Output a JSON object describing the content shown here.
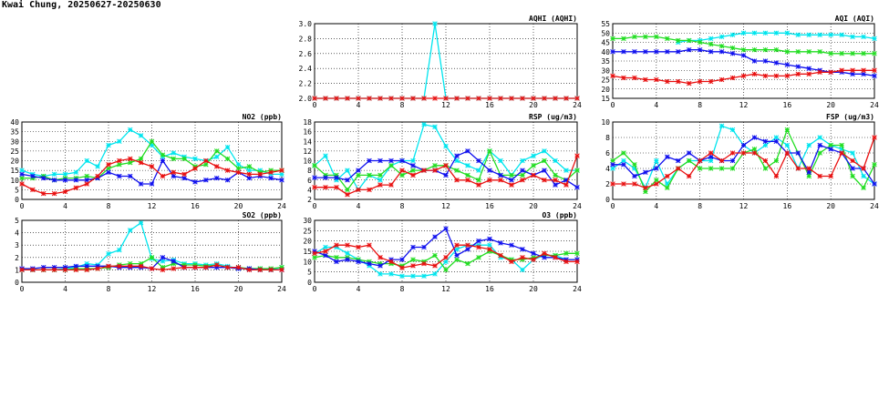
{
  "page": {
    "title": "Kwai Chung, 20250627-20250630"
  },
  "colors": {
    "cyan": "#00e5ee",
    "green": "#22dd22",
    "blue": "#1010ee",
    "red": "#e81010"
  },
  "chart_data": [
    {
      "type": "line",
      "title": "AQHI (AQHI)",
      "ylim": [
        2.0,
        3.0
      ],
      "yticks": [
        "2.0",
        "2.2",
        "2.4",
        "2.6",
        "2.8",
        "3.0"
      ],
      "xticks": [
        "0",
        "4",
        "8",
        "12",
        "16",
        "20",
        "24"
      ],
      "grid": true,
      "x": [
        0,
        1,
        2,
        3,
        4,
        5,
        6,
        7,
        8,
        9,
        10,
        11,
        12,
        13,
        14,
        15,
        16,
        17,
        18,
        19,
        20,
        21,
        22,
        23,
        24
      ],
      "series": [
        {
          "color": "cyan",
          "values": [
            2,
            2,
            2,
            2,
            2,
            2,
            2,
            2,
            2,
            2,
            2,
            3,
            2,
            2,
            2,
            2,
            2,
            2,
            2,
            2,
            2,
            2,
            2,
            2,
            2
          ]
        },
        {
          "color": "red",
          "values": [
            2,
            2,
            2,
            2,
            2,
            2,
            2,
            2,
            2,
            2,
            2,
            2,
            2,
            2,
            2,
            2,
            2,
            2,
            2,
            2,
            2,
            2,
            2,
            2,
            2
          ]
        }
      ]
    },
    {
      "type": "line",
      "title": "AQI (AQI)",
      "ylim": [
        15,
        55
      ],
      "yticks": [
        "15",
        "20",
        "25",
        "30",
        "35",
        "40",
        "45",
        "50",
        "55"
      ],
      "xticks": [
        "0",
        "4",
        "8",
        "12",
        "16",
        "20",
        "24"
      ],
      "grid": true,
      "x": [
        0,
        1,
        2,
        3,
        4,
        5,
        6,
        7,
        8,
        9,
        10,
        11,
        12,
        13,
        14,
        15,
        16,
        17,
        18,
        19,
        20,
        21,
        22,
        23,
        24
      ],
      "series": [
        {
          "color": "cyan",
          "values": [
            null,
            null,
            null,
            null,
            null,
            null,
            45,
            46,
            46,
            47,
            48,
            49,
            50,
            50,
            50,
            50,
            50,
            49,
            49,
            49,
            49,
            49,
            48,
            48,
            47
          ]
        },
        {
          "color": "green",
          "values": [
            47,
            47,
            48,
            48,
            48,
            47,
            46,
            46,
            45,
            44,
            43,
            42,
            41,
            41,
            41,
            41,
            40,
            40,
            40,
            40,
            39,
            39,
            39,
            39,
            39
          ]
        },
        {
          "color": "blue",
          "values": [
            40,
            40,
            40,
            40,
            40,
            40,
            40,
            41,
            41,
            40,
            40,
            39,
            38,
            35,
            35,
            34,
            33,
            32,
            31,
            30,
            29,
            29,
            28,
            28,
            27
          ]
        },
        {
          "color": "red",
          "values": [
            27,
            26,
            26,
            25,
            25,
            24,
            24,
            23,
            24,
            24,
            25,
            26,
            27,
            28,
            27,
            27,
            27,
            28,
            28,
            29,
            29,
            30,
            30,
            30,
            30
          ]
        }
      ]
    },
    {
      "type": "line",
      "title": "NO2 (ppb)",
      "ylim": [
        0,
        40
      ],
      "yticks": [
        "0",
        "5",
        "10",
        "15",
        "20",
        "25",
        "30",
        "35",
        "40"
      ],
      "xticks": [
        "0",
        "4",
        "8",
        "12",
        "16",
        "20",
        "24"
      ],
      "grid": true,
      "x": [
        0,
        1,
        2,
        3,
        4,
        5,
        6,
        7,
        8,
        9,
        10,
        11,
        12,
        13,
        14,
        15,
        16,
        17,
        18,
        19,
        20,
        21,
        22,
        23,
        24
      ],
      "series": [
        {
          "color": "cyan",
          "values": [
            15,
            13,
            12,
            13,
            13,
            14,
            20,
            17,
            28,
            30,
            36,
            33,
            28,
            22,
            24,
            22,
            21,
            20,
            22,
            27,
            18,
            15,
            15,
            13,
            13
          ]
        },
        {
          "color": "green",
          "values": [
            11,
            11,
            12,
            10,
            11,
            11,
            12,
            11,
            16,
            18,
            19,
            21,
            30,
            23,
            21,
            21,
            17,
            18,
            25,
            21,
            16,
            17,
            14,
            15,
            15
          ]
        },
        {
          "color": "blue",
          "values": [
            13,
            12,
            11,
            10,
            10,
            10,
            10,
            11,
            14,
            12,
            12,
            8,
            8,
            20,
            12,
            11,
            9,
            10,
            11,
            10,
            14,
            11,
            12,
            11,
            10
          ]
        },
        {
          "color": "red",
          "values": [
            8,
            5,
            3,
            3,
            4,
            6,
            8,
            12,
            18,
            20,
            21,
            19,
            17,
            12,
            14,
            13,
            16,
            20,
            17,
            15,
            14,
            13,
            13,
            14,
            15
          ]
        }
      ]
    },
    {
      "type": "line",
      "title": "RSP (ug/m3)",
      "ylim": [
        2,
        18
      ],
      "yticks": [
        "2",
        "4",
        "6",
        "8",
        "10",
        "12",
        "14",
        "16",
        "18"
      ],
      "xticks": [
        "0",
        "4",
        "8",
        "12",
        "16",
        "20",
        "24"
      ],
      "grid": true,
      "x": [
        0,
        1,
        2,
        3,
        4,
        5,
        6,
        7,
        8,
        9,
        10,
        11,
        12,
        13,
        14,
        15,
        16,
        17,
        18,
        19,
        20,
        21,
        22,
        23,
        24
      ],
      "series": [
        {
          "color": "cyan",
          "values": [
            9,
            11,
            6,
            8,
            4,
            7,
            6,
            9,
            10,
            10,
            17.5,
            17,
            13,
            10,
            9,
            8,
            12,
            10,
            7,
            10,
            11,
            12,
            10,
            8,
            8
          ]
        },
        {
          "color": "green",
          "values": [
            9,
            7,
            7,
            4,
            7,
            7,
            7,
            9,
            7,
            8,
            8,
            9,
            9,
            8,
            7,
            6,
            12,
            7,
            7,
            7,
            9,
            10,
            7,
            6,
            8
          ]
        },
        {
          "color": "blue",
          "values": [
            6.5,
            6.5,
            6.5,
            6,
            8,
            10,
            10,
            10,
            10,
            9,
            8,
            8,
            7,
            11,
            12,
            10,
            8,
            7,
            6,
            8,
            7,
            8,
            5,
            6,
            4.5
          ]
        },
        {
          "color": "red",
          "values": [
            4.5,
            4.5,
            4.5,
            3,
            4,
            4,
            5,
            5,
            8,
            7,
            8,
            8,
            9,
            6,
            6,
            5,
            6,
            6,
            5,
            6,
            7,
            6,
            6,
            5,
            11
          ]
        }
      ]
    },
    {
      "type": "line",
      "title": "FSP (ug/m3)",
      "ylim": [
        0,
        10
      ],
      "yticks": [
        "0",
        "2",
        "4",
        "6",
        "8",
        "10"
      ],
      "xticks": [
        "0",
        "4",
        "8",
        "12",
        "16",
        "20",
        "24"
      ],
      "grid": true,
      "x": [
        0,
        1,
        2,
        3,
        4,
        5,
        6,
        7,
        8,
        9,
        10,
        11,
        12,
        13,
        14,
        15,
        16,
        17,
        18,
        19,
        20,
        21,
        22,
        23,
        24
      ],
      "series": [
        {
          "color": "cyan",
          "values": [
            4,
            5,
            4,
            1.5,
            5,
            2,
            4,
            5,
            5,
            5,
            9.5,
            9,
            7,
            6,
            7,
            8,
            7,
            4,
            7,
            8,
            7,
            6.5,
            6,
            3,
            2
          ]
        },
        {
          "color": "green",
          "values": [
            5,
            6,
            4.5,
            1,
            2.5,
            1.5,
            4,
            5,
            4,
            4,
            4,
            4,
            6,
            6.5,
            4,
            5,
            9,
            6,
            3,
            6,
            7,
            7,
            3,
            1.5,
            4.5
          ]
        },
        {
          "color": "blue",
          "values": [
            4.5,
            4.5,
            3,
            3.5,
            4,
            5.5,
            5,
            6,
            5,
            5.5,
            5,
            5,
            7,
            8,
            7.5,
            7.5,
            6,
            6,
            3.5,
            7,
            6.5,
            6,
            4,
            4,
            2
          ]
        },
        {
          "color": "red",
          "values": [
            2,
            2,
            2,
            1.5,
            2,
            3,
            4,
            3,
            5,
            6,
            5,
            6,
            6,
            6,
            5,
            3,
            6,
            4,
            4,
            3,
            3,
            6,
            5,
            4,
            8
          ]
        }
      ]
    },
    {
      "type": "line",
      "title": "SO2 (ppb)",
      "ylim": [
        0,
        5
      ],
      "yticks": [
        "0",
        "1",
        "2",
        "3",
        "4",
        "5"
      ],
      "xticks": [
        "0",
        "4",
        "8",
        "12",
        "16",
        "20",
        "24"
      ],
      "grid": true,
      "x": [
        0,
        1,
        2,
        3,
        4,
        5,
        6,
        7,
        8,
        9,
        10,
        11,
        12,
        13,
        14,
        15,
        16,
        17,
        18,
        19,
        20,
        21,
        22,
        23,
        24
      ],
      "series": [
        {
          "color": "cyan",
          "values": [
            1,
            1,
            1,
            1,
            1.1,
            1.2,
            1.5,
            1.4,
            2.3,
            2.6,
            4.2,
            4.8,
            1.9,
            1.7,
            1.8,
            1.5,
            1.5,
            1.4,
            1.5,
            1.3,
            1.1,
            1.1,
            1.1,
            1,
            1.2
          ]
        },
        {
          "color": "green",
          "values": [
            1,
            1,
            1,
            1,
            1,
            1.1,
            1.1,
            1.1,
            1.2,
            1.4,
            1.5,
            1.5,
            2,
            1.2,
            1.5,
            1.4,
            1.4,
            1.3,
            1.4,
            1.2,
            1.2,
            1.1,
            1.1,
            1.1,
            1.2
          ]
        },
        {
          "color": "blue",
          "values": [
            1.1,
            1.1,
            1.2,
            1.2,
            1.2,
            1.3,
            1.3,
            1.3,
            1.3,
            1.2,
            1.2,
            1.2,
            1.1,
            2,
            1.7,
            1.2,
            1.2,
            1.2,
            1.2,
            1.2,
            1.1,
            1.1,
            1,
            1,
            1
          ]
        },
        {
          "color": "red",
          "values": [
            1,
            1,
            1,
            1,
            1,
            1,
            1,
            1.1,
            1.3,
            1.3,
            1.3,
            1.3,
            1.1,
            1,
            1.1,
            1.2,
            1.2,
            1.2,
            1.4,
            1.2,
            1.2,
            1,
            1,
            1,
            1
          ]
        }
      ]
    },
    {
      "type": "line",
      "title": "O3 (ppb)",
      "ylim": [
        0,
        30
      ],
      "yticks": [
        "0",
        "5",
        "10",
        "15",
        "20",
        "25",
        "30"
      ],
      "xticks": [
        "0",
        "4",
        "8",
        "12",
        "16",
        "20",
        "24"
      ],
      "grid": true,
      "x": [
        0,
        1,
        2,
        3,
        4,
        5,
        6,
        7,
        8,
        9,
        10,
        11,
        12,
        13,
        14,
        15,
        16,
        17,
        18,
        19,
        20,
        21,
        22,
        23,
        24
      ],
      "series": [
        {
          "color": "cyan",
          "values": [
            14,
            17,
            17,
            14,
            11,
            8,
            4,
            4,
            3,
            3,
            3,
            4,
            10,
            16,
            18,
            18,
            18,
            12,
            11,
            6,
            11,
            13,
            13,
            11,
            11
          ]
        },
        {
          "color": "green",
          "values": [
            12,
            13,
            12,
            12,
            11,
            10,
            9,
            9,
            8,
            11,
            10,
            13,
            6,
            11,
            9,
            12,
            15,
            13,
            11,
            11,
            12,
            13,
            13,
            14,
            14
          ]
        },
        {
          "color": "blue",
          "values": [
            15,
            13,
            10,
            11,
            10,
            9,
            8,
            11,
            11,
            17,
            17,
            22,
            26,
            13,
            16,
            20,
            21,
            19,
            18,
            16,
            14,
            12,
            12,
            11,
            11
          ]
        },
        {
          "color": "red",
          "values": [
            14,
            15,
            18,
            18,
            17,
            18,
            12,
            10,
            7,
            8,
            9,
            8,
            12,
            18,
            18,
            17,
            16,
            13,
            10,
            12,
            11,
            14,
            12,
            10,
            10
          ]
        }
      ]
    }
  ]
}
